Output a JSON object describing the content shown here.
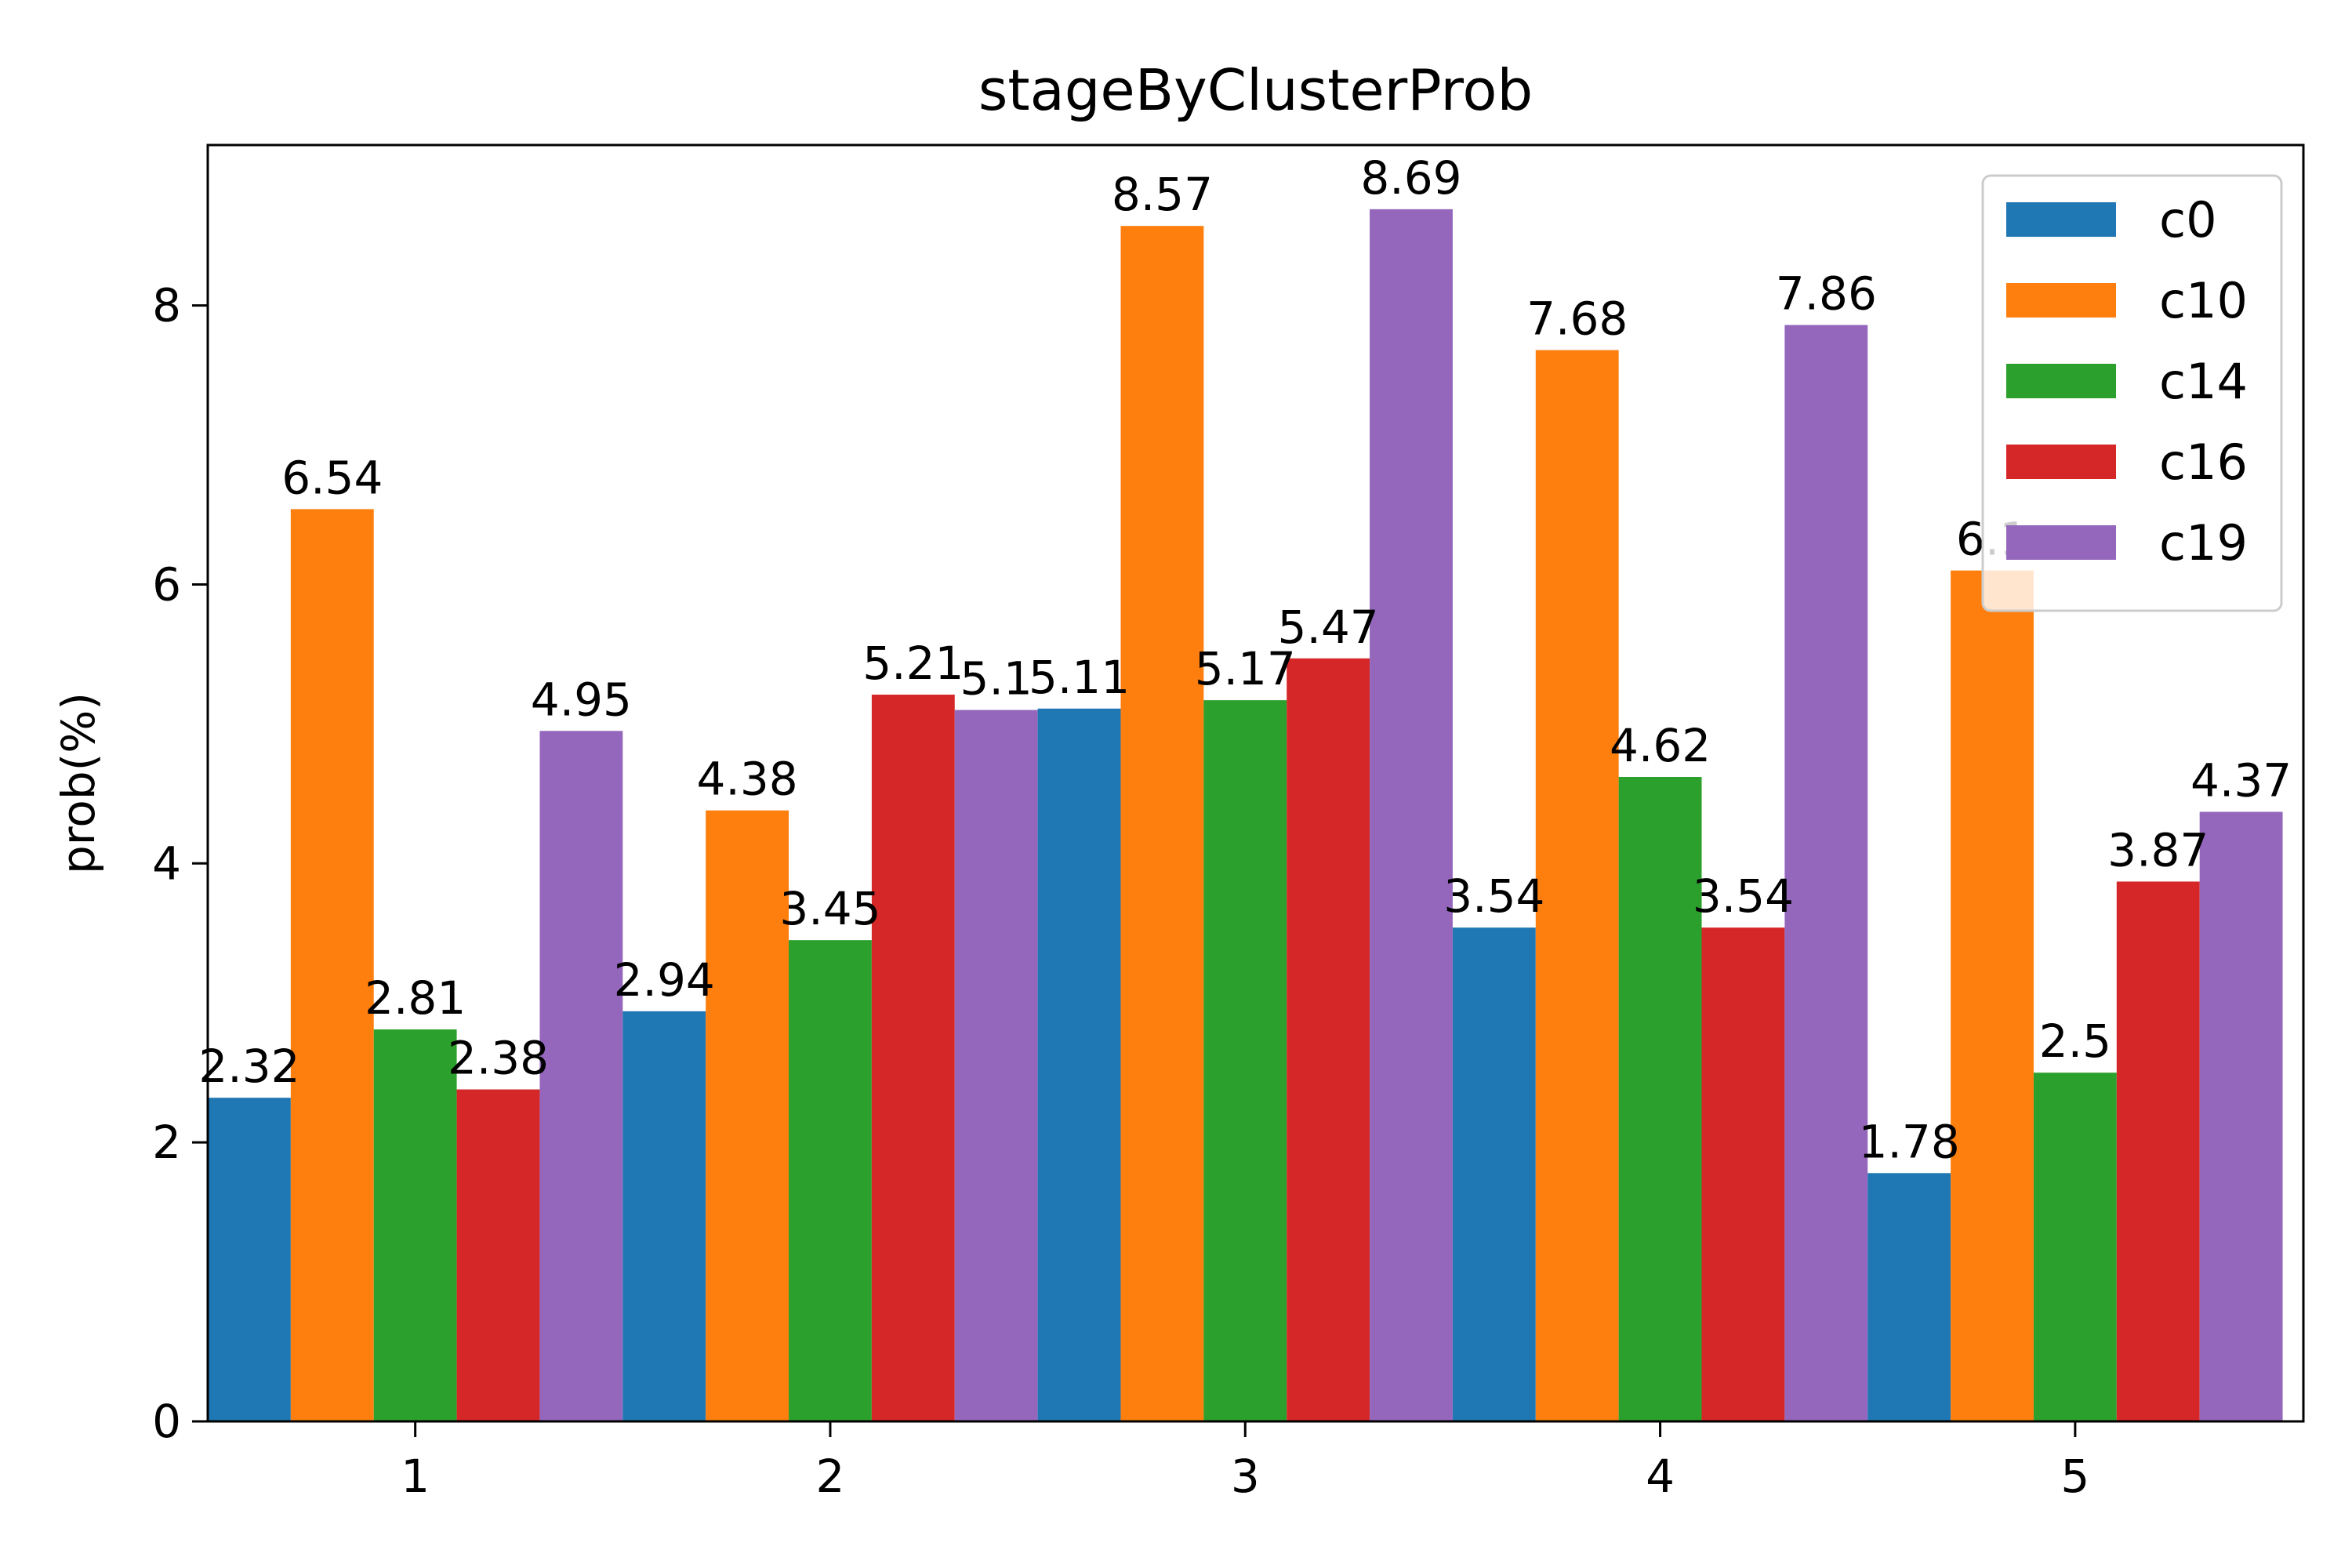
{
  "chart_data": {
    "type": "bar",
    "title": "stageByClusterProb",
    "xlabel": "",
    "ylabel": "prob(%)",
    "ylim": [
      0,
      9.15
    ],
    "xlim": [
      0.5,
      5.55
    ],
    "yticks": [
      0,
      2,
      4,
      6,
      8
    ],
    "categories": [
      "1",
      "2",
      "3",
      "4",
      "5"
    ],
    "legend_position": "top-right",
    "grid": false,
    "series": [
      {
        "name": "c0",
        "color": "#1f77b4",
        "values": [
          2.32,
          2.94,
          5.11,
          3.54,
          1.78
        ],
        "labels": [
          "2.32",
          "2.94",
          "5.11",
          "3.54",
          "1.78"
        ]
      },
      {
        "name": "c10",
        "color": "#ff7f0e",
        "values": [
          6.54,
          4.38,
          8.57,
          7.68,
          6.1
        ],
        "labels": [
          "6.54",
          "4.38",
          "8.57",
          "7.68",
          "6.1"
        ]
      },
      {
        "name": "c14",
        "color": "#2ca02c",
        "values": [
          2.81,
          3.45,
          5.17,
          4.62,
          2.5
        ],
        "labels": [
          "2.81",
          "3.45",
          "5.17",
          "4.62",
          "2.5"
        ]
      },
      {
        "name": "c16",
        "color": "#d62728",
        "values": [
          2.38,
          5.21,
          5.47,
          3.54,
          3.87
        ],
        "labels": [
          "2.38",
          "5.21",
          "5.47",
          "3.54",
          "3.87"
        ]
      },
      {
        "name": "c19",
        "color": "#9467bd",
        "values": [
          4.95,
          5.1,
          8.69,
          7.86,
          4.37
        ],
        "labels": [
          "4.95",
          "5.1",
          "8.69",
          "7.86",
          "4.37"
        ]
      }
    ]
  }
}
